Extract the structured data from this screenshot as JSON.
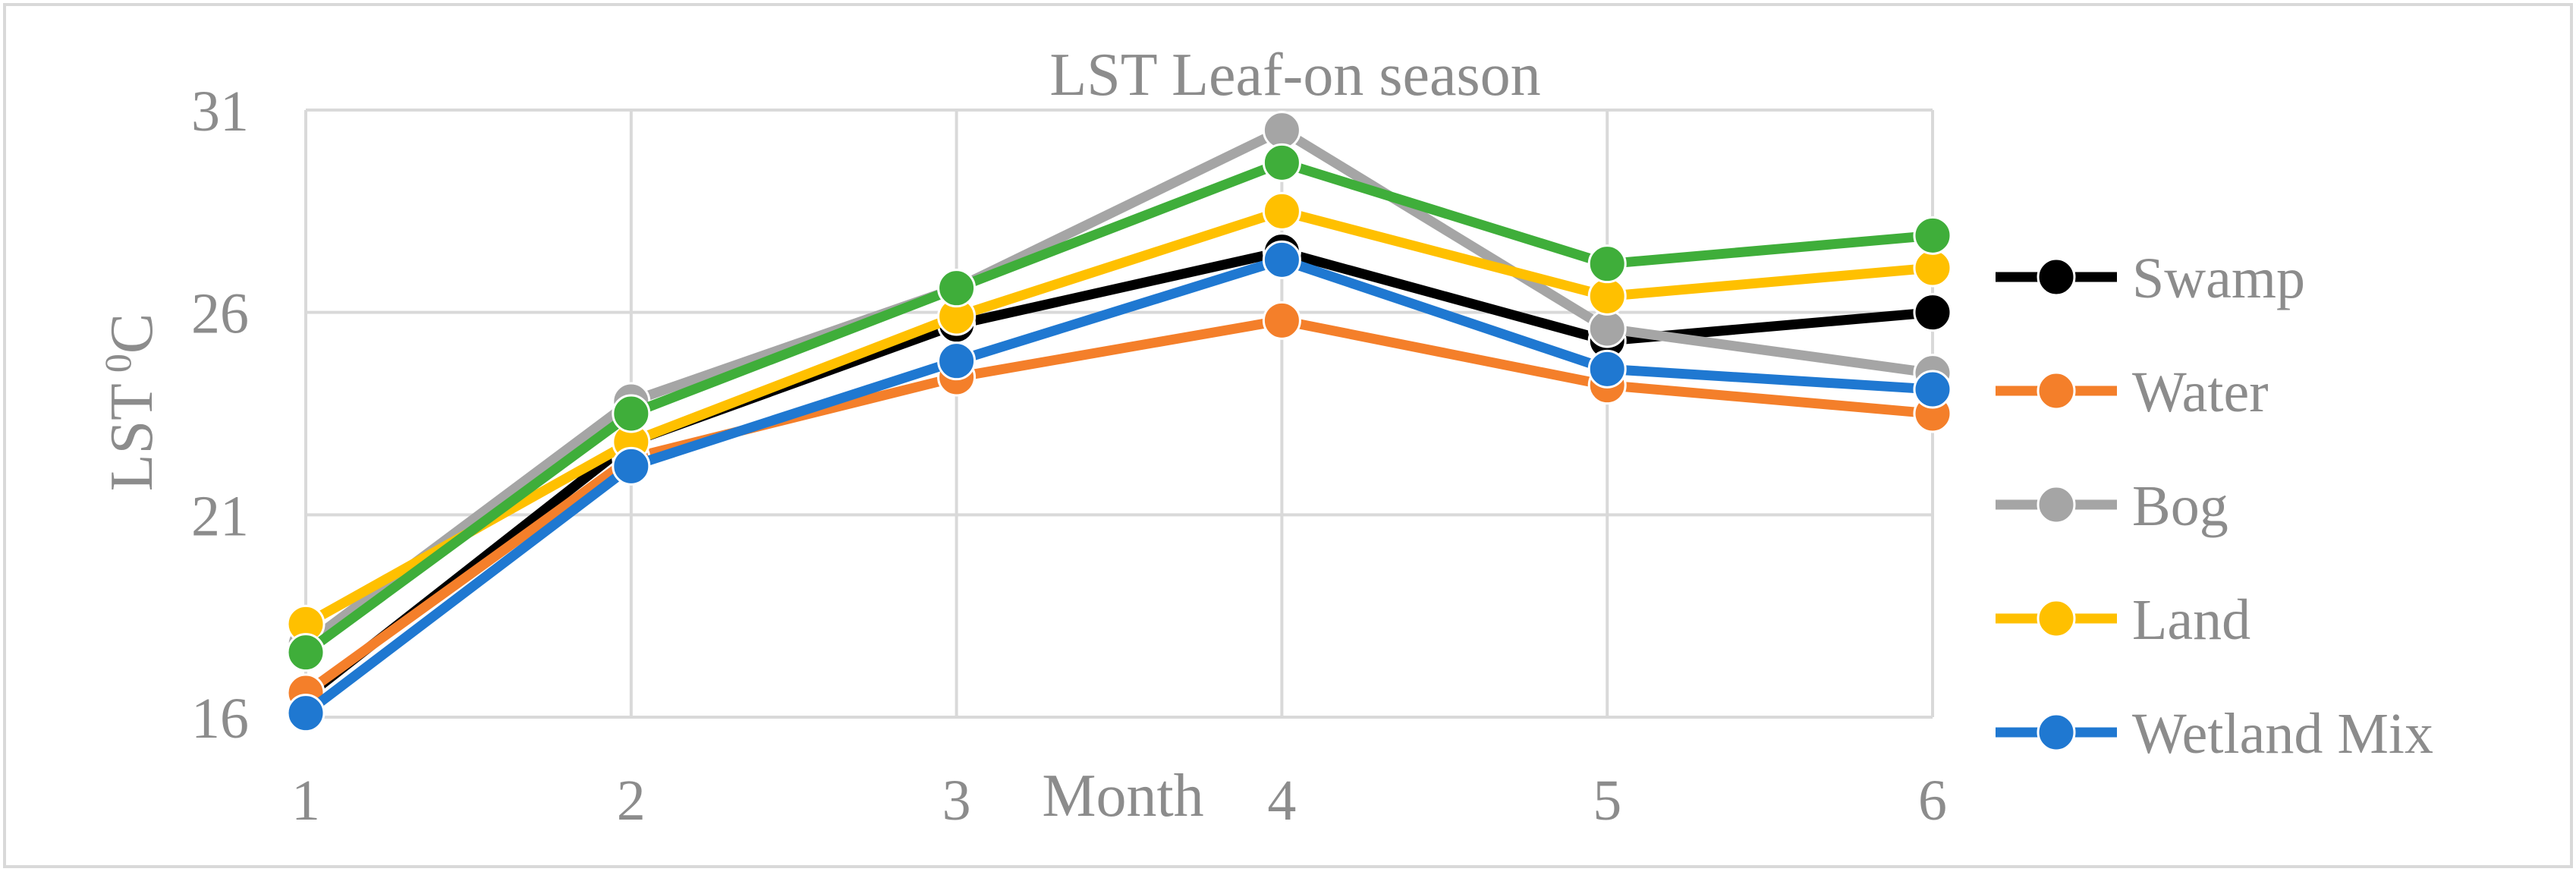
{
  "chart_data": {
    "type": "line",
    "title": "LST Leaf-on season",
    "xlabel": "Month",
    "ylabel": "LST",
    "ylabel_sup": "0",
    "ylabel_unit": "C",
    "categories": [
      1,
      2,
      3,
      4,
      5,
      6
    ],
    "ylim": [
      16,
      31
    ],
    "yticks": [
      16,
      21,
      26,
      31
    ],
    "grid": true,
    "legend_position": "right",
    "series": [
      {
        "name": "Swamp",
        "color": "#000000",
        "values": [
          16.5,
          22.8,
          25.7,
          27.5,
          25.3,
          26.0
        ]
      },
      {
        "name": "Water",
        "color": "#f47f2a",
        "values": [
          16.6,
          22.4,
          24.4,
          25.8,
          24.2,
          23.5
        ]
      },
      {
        "name": "Bog",
        "color": "#a5a5a5",
        "values": [
          17.8,
          23.8,
          26.6,
          30.5,
          25.6,
          24.5
        ]
      },
      {
        "name": "Land",
        "color": "#ffc000",
        "values": [
          18.3,
          22.8,
          25.9,
          28.5,
          26.4,
          27.1
        ]
      },
      {
        "name": "Wetland Mix",
        "color": "#1f78d1",
        "values": [
          16.1,
          22.2,
          24.8,
          27.3,
          24.6,
          24.1
        ]
      },
      {
        "name": "",
        "color": "#3fae3a",
        "values": [
          17.6,
          23.5,
          26.6,
          29.7,
          27.2,
          27.9
        ]
      }
    ]
  }
}
